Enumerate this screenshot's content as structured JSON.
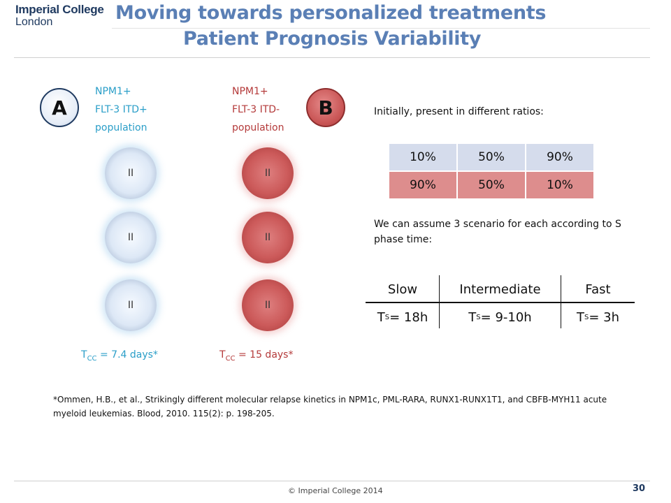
{
  "header": {
    "logo_line1": "Imperial College",
    "logo_line2": "London",
    "title_line1": "Moving towards personalized treatments",
    "title_line2": "Patient Prognosis Variability"
  },
  "population_a": {
    "badge": "A",
    "line1": "NPM1+",
    "line2": "FLT-3 ITD+",
    "line3": "population",
    "cell_label": "II",
    "tcc_prefix": "T",
    "tcc_sub": "CC",
    "tcc_value": " = 7.4 days*"
  },
  "population_b": {
    "badge": "B",
    "line1": "NPM1+",
    "line2": "FLT-3 ITD-",
    "line3": "population",
    "cell_label": "II",
    "tcc_prefix": "T",
    "tcc_sub": "CC",
    "tcc_value": " = 15 days*"
  },
  "ratio_intro": "Initially, present in different ratios:",
  "ratios": {
    "row_a": [
      "10%",
      "50%",
      "90%"
    ],
    "row_b": [
      "90%",
      "50%",
      "10%"
    ]
  },
  "scenario_text": "We can assume 3 scenario for each according to S phase time:",
  "scenarios": {
    "headers": [
      "Slow",
      "Intermediate",
      "Fast"
    ],
    "ts_prefix": "T",
    "ts_sub": "S",
    "values": [
      " = 18h",
      " = 9-10h",
      " = 3h"
    ]
  },
  "reference": "*Ommen, H.B., et al., Strikingly different molecular relapse kinetics in NPM1c, PML-RARA, RUNX1-RUNX1T1, and CBFB-MYH11 acute myeloid leukemias. Blood, 2010. 115(2): p. 198-205.",
  "footer": {
    "copyright": "© Imperial College 2014",
    "page_number": "30"
  },
  "colors": {
    "title": "#5a7fb5",
    "population_a": "#2a9ec8",
    "population_b": "#b43a3a",
    "ratio_row_a": "#d5dcec",
    "ratio_row_b": "#dd8d8d"
  }
}
